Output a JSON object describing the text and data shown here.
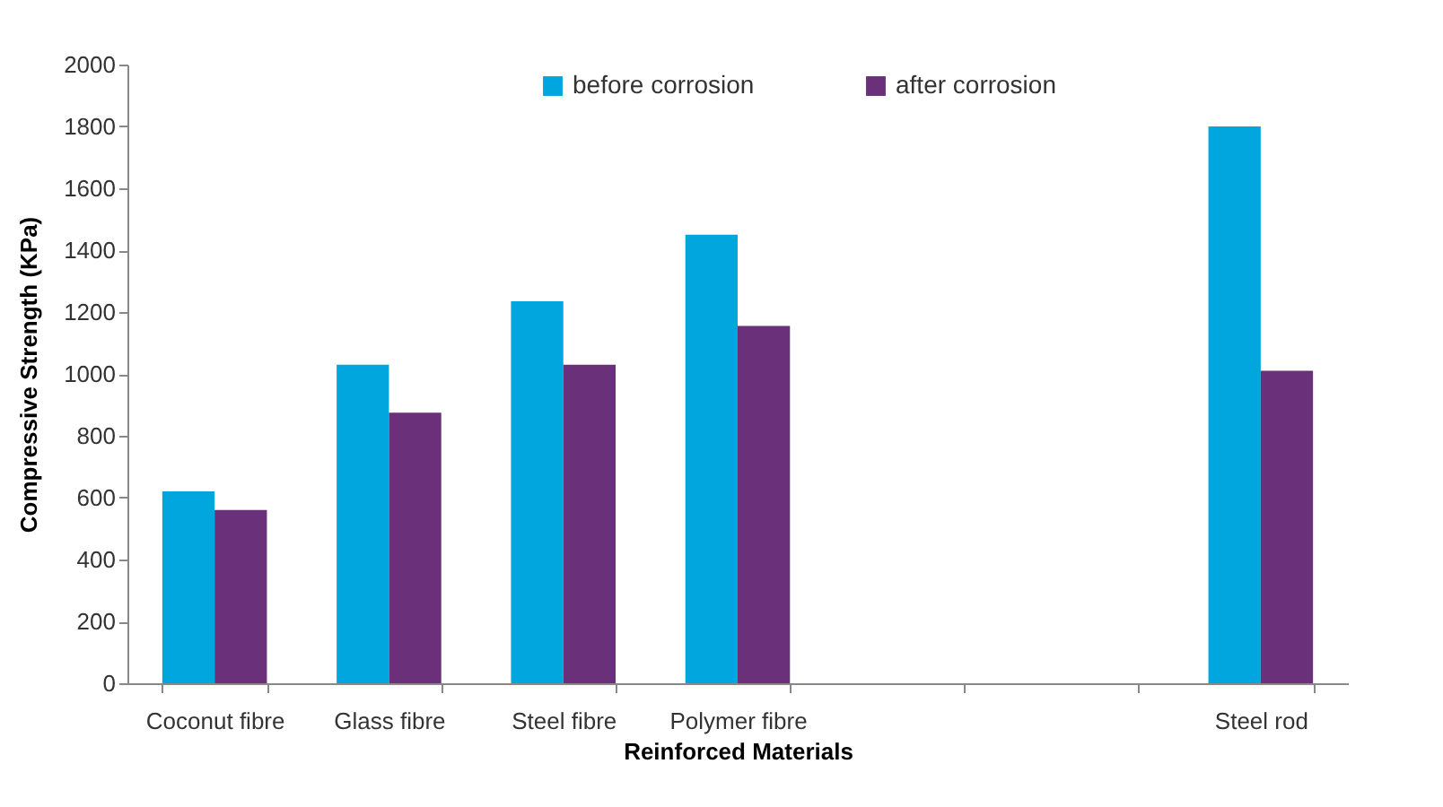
{
  "chart_data": {
    "type": "bar",
    "xlabel": "Reinforced Materials",
    "ylabel": "Compressive Strength (KPa)",
    "categories": [
      "Coconut fibre",
      "Glass fibre",
      "Steel fibre",
      "Polymer fibre",
      null,
      null,
      "Steel rod"
    ],
    "series": [
      {
        "name": "before corrosion",
        "color": "#00a6dd",
        "values": [
          620,
          1030,
          1235,
          1450,
          null,
          null,
          1800
        ]
      },
      {
        "name": "after corrosion",
        "color": "#6b307a",
        "values": [
          560,
          875,
          1030,
          1155,
          null,
          null,
          1010
        ]
      }
    ],
    "ylim": [
      0,
      2000
    ],
    "yticks": [
      0,
      200,
      400,
      600,
      800,
      1000,
      1200,
      1400,
      1600,
      1800,
      2000
    ],
    "grid": false,
    "legend": "top"
  }
}
